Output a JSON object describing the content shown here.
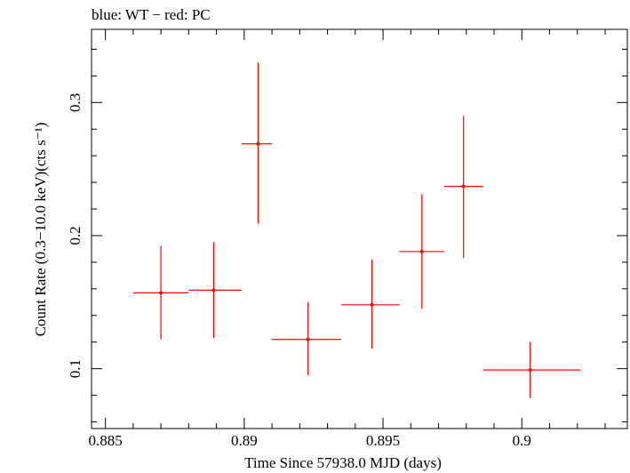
{
  "chart_data": {
    "type": "scatter",
    "title": "blue: WT − red: PC",
    "xlabel": "Time Since 57938.0 MJD (days)",
    "ylabel": "Count Rate (0.3−10.0 keV)(cts s⁻¹)",
    "xlim": [
      0.8845,
      0.9038
    ],
    "ylim": [
      0.055,
      0.355
    ],
    "x_ticks": [
      0.885,
      0.89,
      0.895,
      0.9
    ],
    "x_tick_labels": [
      "0.885",
      "0.89",
      "0.895",
      "0.9"
    ],
    "y_ticks": [
      0.1,
      0.2,
      0.3
    ],
    "y_tick_labels": [
      "0.1",
      "0.2",
      "0.3"
    ],
    "series": [
      {
        "name": "PC",
        "color": "#ff0000",
        "points": [
          {
            "x": 0.887,
            "y": 0.157,
            "x_lo": 0.886,
            "x_hi": 0.888,
            "y_lo": 0.122,
            "y_hi": 0.192
          },
          {
            "x": 0.8889,
            "y": 0.159,
            "x_lo": 0.888,
            "x_hi": 0.8899,
            "y_lo": 0.123,
            "y_hi": 0.195
          },
          {
            "x": 0.8905,
            "y": 0.269,
            "x_lo": 0.8899,
            "x_hi": 0.891,
            "y_lo": 0.209,
            "y_hi": 0.33
          },
          {
            "x": 0.8923,
            "y": 0.122,
            "x_lo": 0.891,
            "x_hi": 0.8935,
            "y_lo": 0.095,
            "y_hi": 0.15
          },
          {
            "x": 0.8946,
            "y": 0.148,
            "x_lo": 0.8935,
            "x_hi": 0.8956,
            "y_lo": 0.115,
            "y_hi": 0.182
          },
          {
            "x": 0.8964,
            "y": 0.188,
            "x_lo": 0.8956,
            "x_hi": 0.8972,
            "y_lo": 0.145,
            "y_hi": 0.231
          },
          {
            "x": 0.8979,
            "y": 0.237,
            "x_lo": 0.8972,
            "x_hi": 0.8986,
            "y_lo": 0.183,
            "y_hi": 0.29
          },
          {
            "x": 0.9003,
            "y": 0.099,
            "x_lo": 0.8986,
            "x_hi": 0.9021,
            "y_lo": 0.078,
            "y_hi": 0.12
          }
        ]
      }
    ]
  }
}
